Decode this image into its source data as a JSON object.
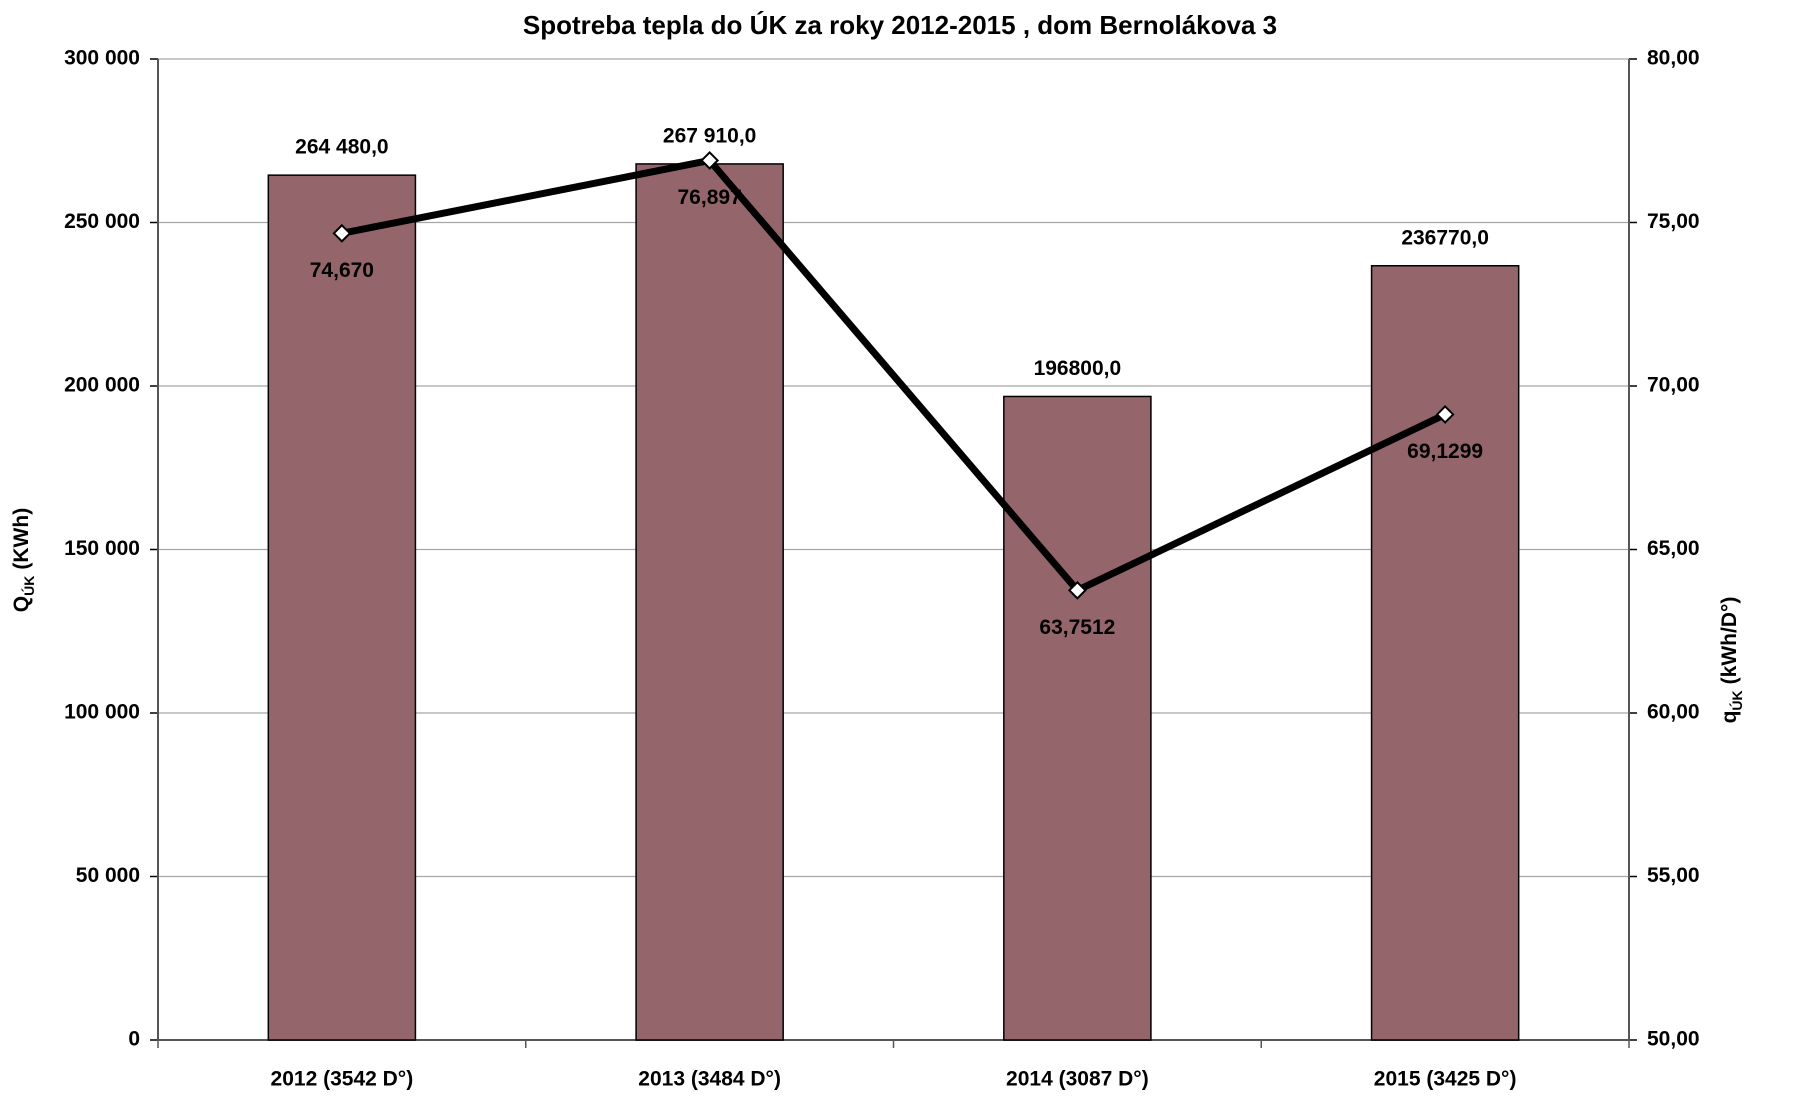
{
  "chart_data": {
    "type": "bar",
    "title": "Spotreba tepla do ÚK za roky 2012-2015 , dom Bernolákova 3",
    "y_label": {
      "symbol": "Q",
      "sub": "ÚK",
      "unit": "(KWh)"
    },
    "y2_label": {
      "symbol": "q",
      "sub": "ÚK",
      "unit": "(kWh/D°)"
    },
    "categories": [
      "2012 (3542 D°)",
      "2013 (3484 D°)",
      "2014 (3087 D°)",
      "2015 (3425 D°)"
    ],
    "series": [
      {
        "type": "bar",
        "color": "#94666b",
        "values": [
          264480,
          267910,
          196800,
          236770
        ],
        "value_labels": [
          "264 480,0",
          "267 910,0",
          "196800,0",
          "236770,0"
        ]
      },
      {
        "type": "line",
        "axis": "y2",
        "color": "#000000",
        "values": [
          74.67,
          76.897,
          63.7512,
          69.1299
        ],
        "value_labels": [
          "74,670",
          "76,897",
          "63,7512",
          "69,1299"
        ]
      }
    ],
    "ylim": [
      0,
      300000
    ],
    "yticks": [
      0,
      {
        "value": 50000,
        "label": "50 000"
      },
      {
        "value": 100000,
        "label": "100 000"
      },
      {
        "value": 150000,
        "label": "150 000"
      },
      {
        "value": 200000,
        "label": "200 000"
      },
      {
        "value": 250000,
        "label": "250 000"
      },
      {
        "value": 300000,
        "label": "300 000"
      }
    ],
    "y2lim": [
      50,
      80
    ],
    "y2ticks": [
      {
        "value": 50,
        "label": "50,00"
      },
      {
        "value": 55,
        "label": "55,00"
      },
      {
        "value": 60,
        "label": "60,00"
      },
      {
        "value": 65,
        "label": "65,00"
      },
      {
        "value": 70,
        "label": "70,00"
      },
      {
        "value": 75,
        "label": "75,00"
      },
      {
        "value": 80,
        "label": "80,00"
      }
    ],
    "grid": true
  }
}
